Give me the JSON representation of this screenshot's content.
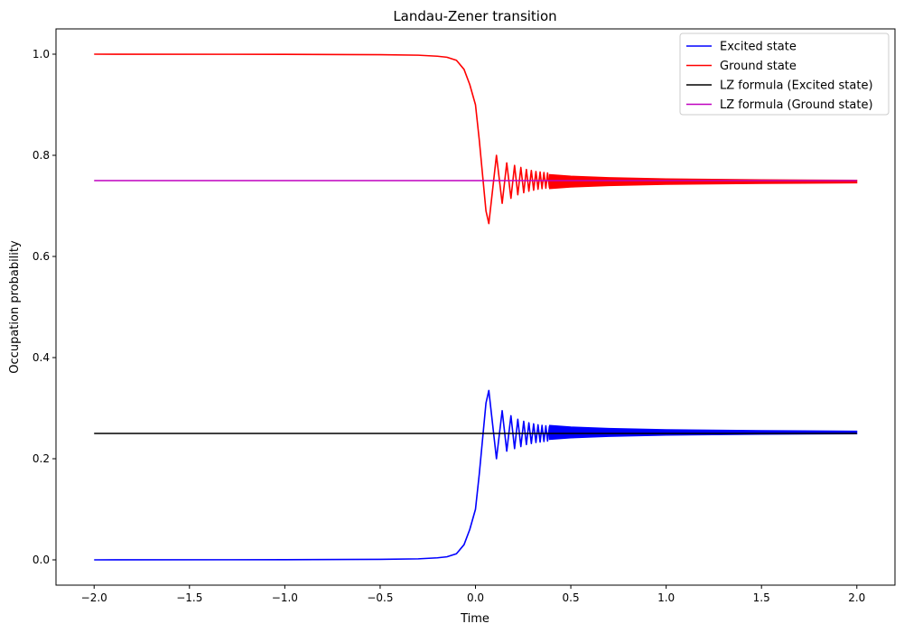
{
  "chart_data": {
    "type": "line",
    "title": "Landau-Zener transition",
    "xlabel": "Time",
    "ylabel": "Occupation probability",
    "xlim": [
      -2.2,
      2.2
    ],
    "ylim": [
      -0.05,
      1.05
    ],
    "xticks": [
      -2.0,
      -1.5,
      -1.0,
      -0.5,
      0.0,
      0.5,
      1.0,
      1.5,
      2.0
    ],
    "xtick_labels": [
      "−2.0",
      "−1.5",
      "−1.0",
      "−0.5",
      "0.0",
      "0.5",
      "1.0",
      "1.5",
      "2.0"
    ],
    "yticks": [
      0.0,
      0.2,
      0.4,
      0.6,
      0.8,
      1.0
    ],
    "ytick_labels": [
      "0.0",
      "0.2",
      "0.4",
      "0.6",
      "0.8",
      "1.0"
    ],
    "grid": false,
    "legend_position": "top-right",
    "series": [
      {
        "name": "Excited state",
        "color": "#0000ff",
        "x": [
          -2.0,
          -1.0,
          -0.5,
          -0.3,
          -0.2,
          -0.15,
          -0.1,
          -0.06,
          -0.03,
          0.0,
          0.02,
          0.04,
          0.055,
          0.07,
          0.11,
          0.14,
          0.164,
          0.186,
          0.205,
          0.222,
          0.238,
          0.253,
          0.267,
          0.28,
          0.293,
          0.305,
          0.317,
          0.328,
          0.339,
          0.349,
          0.359,
          0.369,
          0.378,
          0.388
        ],
        "y": [
          0.0,
          0.0003,
          0.001,
          0.002,
          0.004,
          0.006,
          0.012,
          0.03,
          0.06,
          0.1,
          0.17,
          0.25,
          0.31,
          0.335,
          0.2,
          0.295,
          0.215,
          0.285,
          0.22,
          0.278,
          0.224,
          0.274,
          0.228,
          0.271,
          0.23,
          0.269,
          0.232,
          0.267,
          0.233,
          0.266,
          0.234,
          0.265,
          0.235,
          0.264
        ],
        "oscillation_band": {
          "x": [
            0.388,
            0.5,
            0.7,
            1.0,
            1.5,
            2.0
          ],
          "upper": [
            0.266,
            0.263,
            0.26,
            0.2575,
            0.2557,
            0.2548
          ],
          "lower": [
            0.238,
            0.241,
            0.244,
            0.2465,
            0.2483,
            0.2492
          ]
        }
      },
      {
        "name": "Ground state",
        "color": "#ff0000",
        "x": [
          -2.0,
          -1.0,
          -0.5,
          -0.3,
          -0.2,
          -0.15,
          -0.1,
          -0.06,
          -0.03,
          0.0,
          0.02,
          0.04,
          0.055,
          0.07,
          0.11,
          0.14,
          0.164,
          0.186,
          0.205,
          0.222,
          0.238,
          0.253,
          0.267,
          0.28,
          0.293,
          0.305,
          0.317,
          0.328,
          0.339,
          0.349,
          0.359,
          0.369,
          0.378,
          0.388
        ],
        "y": [
          1.0,
          0.9997,
          0.999,
          0.998,
          0.996,
          0.994,
          0.988,
          0.97,
          0.94,
          0.9,
          0.83,
          0.75,
          0.69,
          0.665,
          0.8,
          0.705,
          0.785,
          0.715,
          0.78,
          0.722,
          0.776,
          0.726,
          0.772,
          0.729,
          0.77,
          0.731,
          0.768,
          0.733,
          0.767,
          0.734,
          0.766,
          0.735,
          0.765,
          0.736
        ],
        "oscillation_band": {
          "x": [
            0.388,
            0.5,
            0.7,
            1.0,
            1.5,
            2.0
          ],
          "upper": [
            0.762,
            0.759,
            0.756,
            0.7535,
            0.7517,
            0.7508
          ],
          "lower": [
            0.734,
            0.737,
            0.74,
            0.7425,
            0.7443,
            0.7452
          ]
        }
      },
      {
        "name": "LZ formula (Excited state)",
        "color": "#000000",
        "x": [
          -2.0,
          2.0
        ],
        "y": [
          0.25,
          0.25
        ]
      },
      {
        "name": "LZ formula (Ground state)",
        "color": "#bf00bf",
        "x": [
          -2.0,
          2.0
        ],
        "y": [
          0.75,
          0.75
        ]
      }
    ]
  }
}
